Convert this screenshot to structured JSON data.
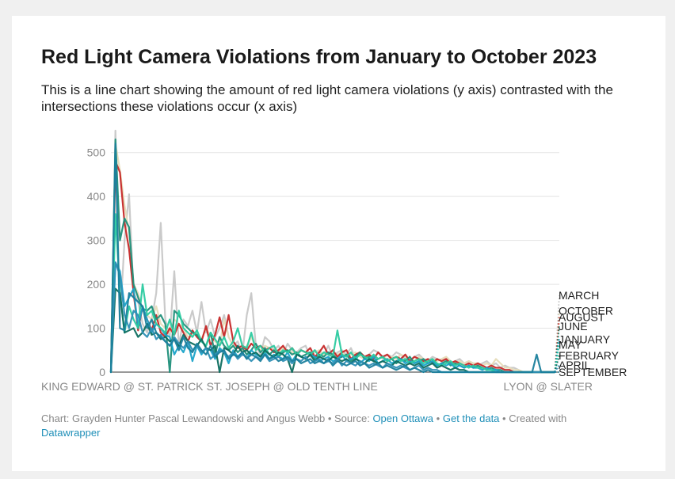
{
  "title": "Red Light Camera Violations from January to October 2023",
  "subtitle": "This is a line chart showing the amount of red light camera violations (y axis) contrasted with the intersections these violations occur (x axis)",
  "footer": {
    "chart_prefix": "Chart: Grayden Hunter Pascal Lewandowski and Angus Webb",
    "source_prefix": "Source:",
    "source_link": "Open Ottawa",
    "data_link": "Get the data",
    "created_with": "Created with",
    "tool_link": "Datawrapper",
    "separator": "•"
  },
  "chart_data": {
    "type": "line",
    "title": "Red Light Camera Violations from January to October 2023",
    "xlabel": "",
    "ylabel": "",
    "ylim": [
      0,
      550
    ],
    "yticks": [
      0,
      100,
      200,
      300,
      400,
      500
    ],
    "x_count": 100,
    "x_tick_labels": [
      {
        "index": 0,
        "label": "KING EDWARD @ ST. PATRICK"
      },
      {
        "index": 40,
        "label": "ST. JOSEPH @ OLD TENTH LINE"
      },
      {
        "index": 99,
        "label": "LYON @ SLATER"
      }
    ],
    "grid": true,
    "legend": "direct-labels-right",
    "series": [
      {
        "name": "MARCH",
        "color": "#c7c7c7",
        "values": [
          0,
          550,
          115,
          300,
          405,
          180,
          160,
          110,
          90,
          120,
          180,
          340,
          120,
          80,
          230,
          60,
          120,
          105,
          140,
          90,
          160,
          90,
          120,
          80,
          100,
          130,
          80,
          60,
          70,
          40,
          130,
          180,
          60,
          40,
          80,
          70,
          50,
          60,
          40,
          65,
          50,
          45,
          55,
          60,
          35,
          50,
          45,
          40,
          60,
          35,
          45,
          50,
          40,
          55,
          30,
          45,
          35,
          40,
          50,
          45,
          30,
          40,
          35,
          45,
          40,
          30,
          25,
          35,
          40,
          30,
          25,
          35,
          30,
          25,
          30,
          20,
          25,
          30,
          20,
          25,
          20,
          15,
          20,
          25,
          15,
          20,
          10,
          15,
          10,
          10,
          5,
          0,
          0,
          0,
          0,
          0,
          0,
          0,
          0,
          175
        ]
      },
      {
        "name": "OCTOBER",
        "color": "#e6dcb9",
        "values": [
          0,
          520,
          460,
          380,
          320,
          200,
          180,
          140,
          130,
          120,
          150,
          110,
          100,
          90,
          120,
          110,
          100,
          80,
          85,
          90,
          75,
          100,
          80,
          70,
          60,
          120,
          80,
          60,
          55,
          50,
          60,
          80,
          55,
          50,
          60,
          55,
          50,
          45,
          55,
          50,
          45,
          40,
          50,
          45,
          40,
          45,
          50,
          40,
          45,
          35,
          40,
          45,
          35,
          40,
          45,
          35,
          30,
          40,
          35,
          30,
          35,
          30,
          35,
          30,
          40,
          35,
          30,
          25,
          35,
          30,
          25,
          30,
          25,
          30,
          35,
          25,
          20,
          25,
          20,
          25,
          20,
          20,
          15,
          20,
          15,
          30,
          20,
          10,
          10,
          5,
          5,
          0,
          0,
          0,
          0,
          0,
          0,
          0,
          0,
          140
        ]
      },
      {
        "name": "AUGUST",
        "color": "#c62828",
        "values": [
          0,
          480,
          455,
          340,
          280,
          180,
          95,
          150,
          120,
          95,
          130,
          90,
          80,
          100,
          85,
          110,
          90,
          70,
          95,
          80,
          70,
          105,
          60,
          85,
          125,
          80,
          130,
          70,
          55,
          60,
          50,
          65,
          55,
          60,
          50,
          55,
          45,
          50,
          60,
          45,
          55,
          40,
          50,
          45,
          55,
          35,
          45,
          60,
          40,
          50,
          35,
          45,
          50,
          30,
          40,
          45,
          35,
          40,
          30,
          45,
          35,
          40,
          30,
          35,
          30,
          40,
          25,
          35,
          30,
          25,
          30,
          20,
          30,
          25,
          30,
          20,
          25,
          20,
          15,
          20,
          15,
          20,
          15,
          10,
          15,
          10,
          10,
          5,
          5,
          0,
          0,
          0,
          0,
          0,
          0,
          0,
          0,
          0,
          0,
          125
        ]
      },
      {
        "name": "JUNE",
        "color": "#1f8f7a",
        "values": [
          0,
          530,
          300,
          350,
          330,
          200,
          170,
          145,
          140,
          150,
          120,
          130,
          110,
          0,
          140,
          130,
          110,
          100,
          90,
          85,
          70,
          60,
          90,
          40,
          80,
          60,
          50,
          60,
          45,
          55,
          40,
          50,
          65,
          45,
          55,
          40,
          50,
          35,
          45,
          50,
          40,
          45,
          35,
          40,
          45,
          30,
          40,
          35,
          45,
          40,
          30,
          35,
          40,
          25,
          35,
          45,
          30,
          35,
          25,
          30,
          35,
          25,
          30,
          20,
          30,
          25,
          35,
          20,
          25,
          30,
          20,
          25,
          15,
          20,
          25,
          15,
          20,
          15,
          10,
          15,
          10,
          15,
          10,
          5,
          10,
          5,
          5,
          0,
          0,
          0,
          0,
          0,
          0,
          0,
          0,
          0,
          0,
          0,
          0,
          105
        ]
      },
      {
        "name": "JANUARY",
        "color": "#1aa3c9",
        "values": [
          0,
          250,
          230,
          150,
          170,
          190,
          100,
          150,
          120,
          90,
          110,
          100,
          85,
          80,
          40,
          60,
          45,
          70,
          25,
          60,
          40,
          55,
          50,
          30,
          55,
          45,
          20,
          50,
          35,
          45,
          30,
          50,
          40,
          35,
          45,
          30,
          40,
          35,
          30,
          45,
          25,
          40,
          35,
          30,
          40,
          35,
          25,
          30,
          35,
          25,
          30,
          40,
          25,
          30,
          35,
          20,
          30,
          25,
          35,
          20,
          25,
          30,
          20,
          25,
          30,
          20,
          25,
          20,
          25,
          15,
          20,
          25,
          15,
          20,
          15,
          20,
          10,
          15,
          10,
          15,
          10,
          10,
          5,
          10,
          5,
          5,
          0,
          0,
          0,
          0,
          0,
          0,
          0,
          0,
          0,
          0,
          0,
          0,
          0,
          75
        ]
      },
      {
        "name": "MAY",
        "color": "#2bcaa0",
        "values": [
          0,
          360,
          180,
          90,
          150,
          120,
          100,
          200,
          130,
          140,
          110,
          100,
          90,
          120,
          85,
          140,
          100,
          90,
          80,
          95,
          70,
          60,
          90,
          75,
          60,
          80,
          55,
          70,
          100,
          60,
          55,
          90,
          50,
          60,
          45,
          55,
          60,
          40,
          50,
          45,
          55,
          40,
          50,
          45,
          40,
          50,
          35,
          45,
          40,
          35,
          95,
          40,
          35,
          45,
          30,
          40,
          35,
          30,
          40,
          30,
          35,
          25,
          30,
          35,
          25,
          30,
          20,
          25,
          30,
          20,
          25,
          30,
          20,
          15,
          20,
          25,
          15,
          20,
          15,
          10,
          15,
          10,
          10,
          5,
          5,
          0,
          0,
          0,
          0,
          0,
          0,
          0,
          0,
          0,
          0,
          0,
          0,
          0,
          0,
          62
        ]
      },
      {
        "name": "FEBRUARY",
        "color": "#0e6e60",
        "values": [
          0,
          190,
          180,
          90,
          95,
          100,
          80,
          90,
          110,
          85,
          90,
          75,
          80,
          70,
          75,
          60,
          85,
          70,
          65,
          60,
          75,
          55,
          50,
          60,
          0,
          55,
          50,
          40,
          60,
          45,
          50,
          40,
          45,
          35,
          50,
          40,
          35,
          45,
          40,
          30,
          0,
          40,
          35,
          30,
          40,
          25,
          35,
          30,
          25,
          35,
          30,
          25,
          30,
          20,
          30,
          25,
          20,
          30,
          25,
          20,
          25,
          20,
          15,
          25,
          20,
          15,
          20,
          15,
          20,
          10,
          15,
          20,
          10,
          15,
          10,
          5,
          10,
          5,
          5,
          0,
          0,
          0,
          0,
          0,
          0,
          0,
          0,
          0,
          0,
          0,
          0,
          0,
          0,
          0,
          0,
          0,
          0,
          0,
          0,
          38
        ]
      },
      {
        "name": "APRIL",
        "color": "#2f8fb5",
        "values": [
          0,
          250,
          220,
          130,
          100,
          140,
          130,
          90,
          80,
          100,
          75,
          85,
          70,
          60,
          80,
          65,
          55,
          70,
          50,
          60,
          45,
          55,
          30,
          40,
          50,
          45,
          35,
          45,
          30,
          40,
          35,
          25,
          35,
          30,
          40,
          25,
          30,
          35,
          25,
          30,
          20,
          30,
          25,
          35,
          20,
          25,
          30,
          20,
          25,
          20,
          30,
          15,
          25,
          20,
          15,
          25,
          20,
          15,
          20,
          15,
          10,
          20,
          15,
          10,
          15,
          10,
          5,
          10,
          15,
          5,
          10,
          5,
          5,
          0,
          0,
          0,
          0,
          0,
          0,
          0,
          0,
          0,
          0,
          0,
          0,
          0,
          0,
          0,
          0,
          0,
          0,
          0,
          0,
          0,
          0,
          0,
          0,
          0,
          0,
          16
        ]
      },
      {
        "name": "SEPTEMBER",
        "color": "#1b7f9c",
        "values": [
          0,
          520,
          100,
          95,
          180,
          170,
          160,
          150,
          100,
          120,
          90,
          80,
          70,
          60,
          75,
          50,
          80,
          55,
          45,
          65,
          50,
          40,
          60,
          35,
          45,
          50,
          30,
          40,
          35,
          45,
          30,
          40,
          35,
          25,
          40,
          30,
          35,
          25,
          30,
          35,
          25,
          30,
          20,
          25,
          30,
          20,
          25,
          20,
          30,
          15,
          25,
          20,
          15,
          20,
          25,
          15,
          20,
          10,
          15,
          20,
          10,
          15,
          10,
          5,
          10,
          15,
          5,
          10,
          5,
          0,
          5,
          0,
          0,
          0,
          0,
          0,
          0,
          0,
          0,
          0,
          0,
          0,
          0,
          0,
          0,
          0,
          0,
          0,
          0,
          0,
          0,
          0,
          0,
          0,
          40,
          0,
          0,
          0,
          0,
          0
        ]
      }
    ]
  }
}
